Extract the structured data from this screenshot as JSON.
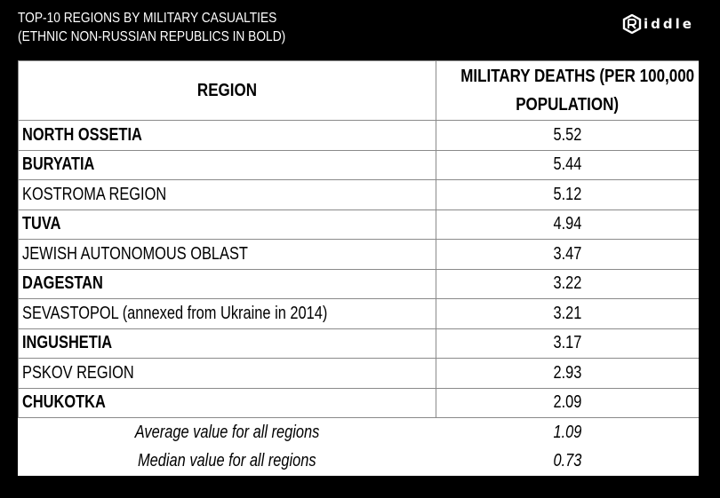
{
  "header": {
    "line1": "TOP-10 REGIONS BY MILITARY CASUALTIES",
    "line2": "(ETHNIC NON-RUSSIAN REPUBLICS IN BOLD)"
  },
  "logo": {
    "text": "iddle",
    "icon": "riddle-r-logo-icon"
  },
  "columns": {
    "region": "REGION",
    "deaths_line1": "MILITARY DEATHS (PER 100,000",
    "deaths_line2": "POPULATION)"
  },
  "chart_data": {
    "type": "table",
    "columns": [
      "REGION",
      "MILITARY DEATHS (PER 100,000 POPULATION)"
    ],
    "rows": [
      {
        "region": "NORTH OSSETIA",
        "value": "5.52",
        "ethnic_republic": true
      },
      {
        "region": "BURYATIA",
        "value": "5.44",
        "ethnic_republic": true
      },
      {
        "region": "KOSTROMA REGION",
        "value": "5.12",
        "ethnic_republic": false
      },
      {
        "region": "TUVA",
        "value": "4.94",
        "ethnic_republic": true
      },
      {
        "region": "JEWISH AUTONOMOUS OBLAST",
        "value": "3.47",
        "ethnic_republic": false
      },
      {
        "region": "DAGESTAN",
        "value": "3.22",
        "ethnic_republic": true
      },
      {
        "region": "SEVASTOPOL (annexed from Ukraine in 2014)",
        "value": "3.21",
        "ethnic_republic": false
      },
      {
        "region": "INGUSHETIA",
        "value": "3.17",
        "ethnic_republic": true
      },
      {
        "region": "PSKOV REGION",
        "value": "2.93",
        "ethnic_republic": false
      },
      {
        "region": "CHUKOTKA",
        "value": "2.09",
        "ethnic_republic": true
      }
    ],
    "summary": [
      {
        "label": "Average  value for all regions",
        "value": "1.09"
      },
      {
        "label": "Median value for all regions",
        "value": "0.73"
      }
    ]
  }
}
